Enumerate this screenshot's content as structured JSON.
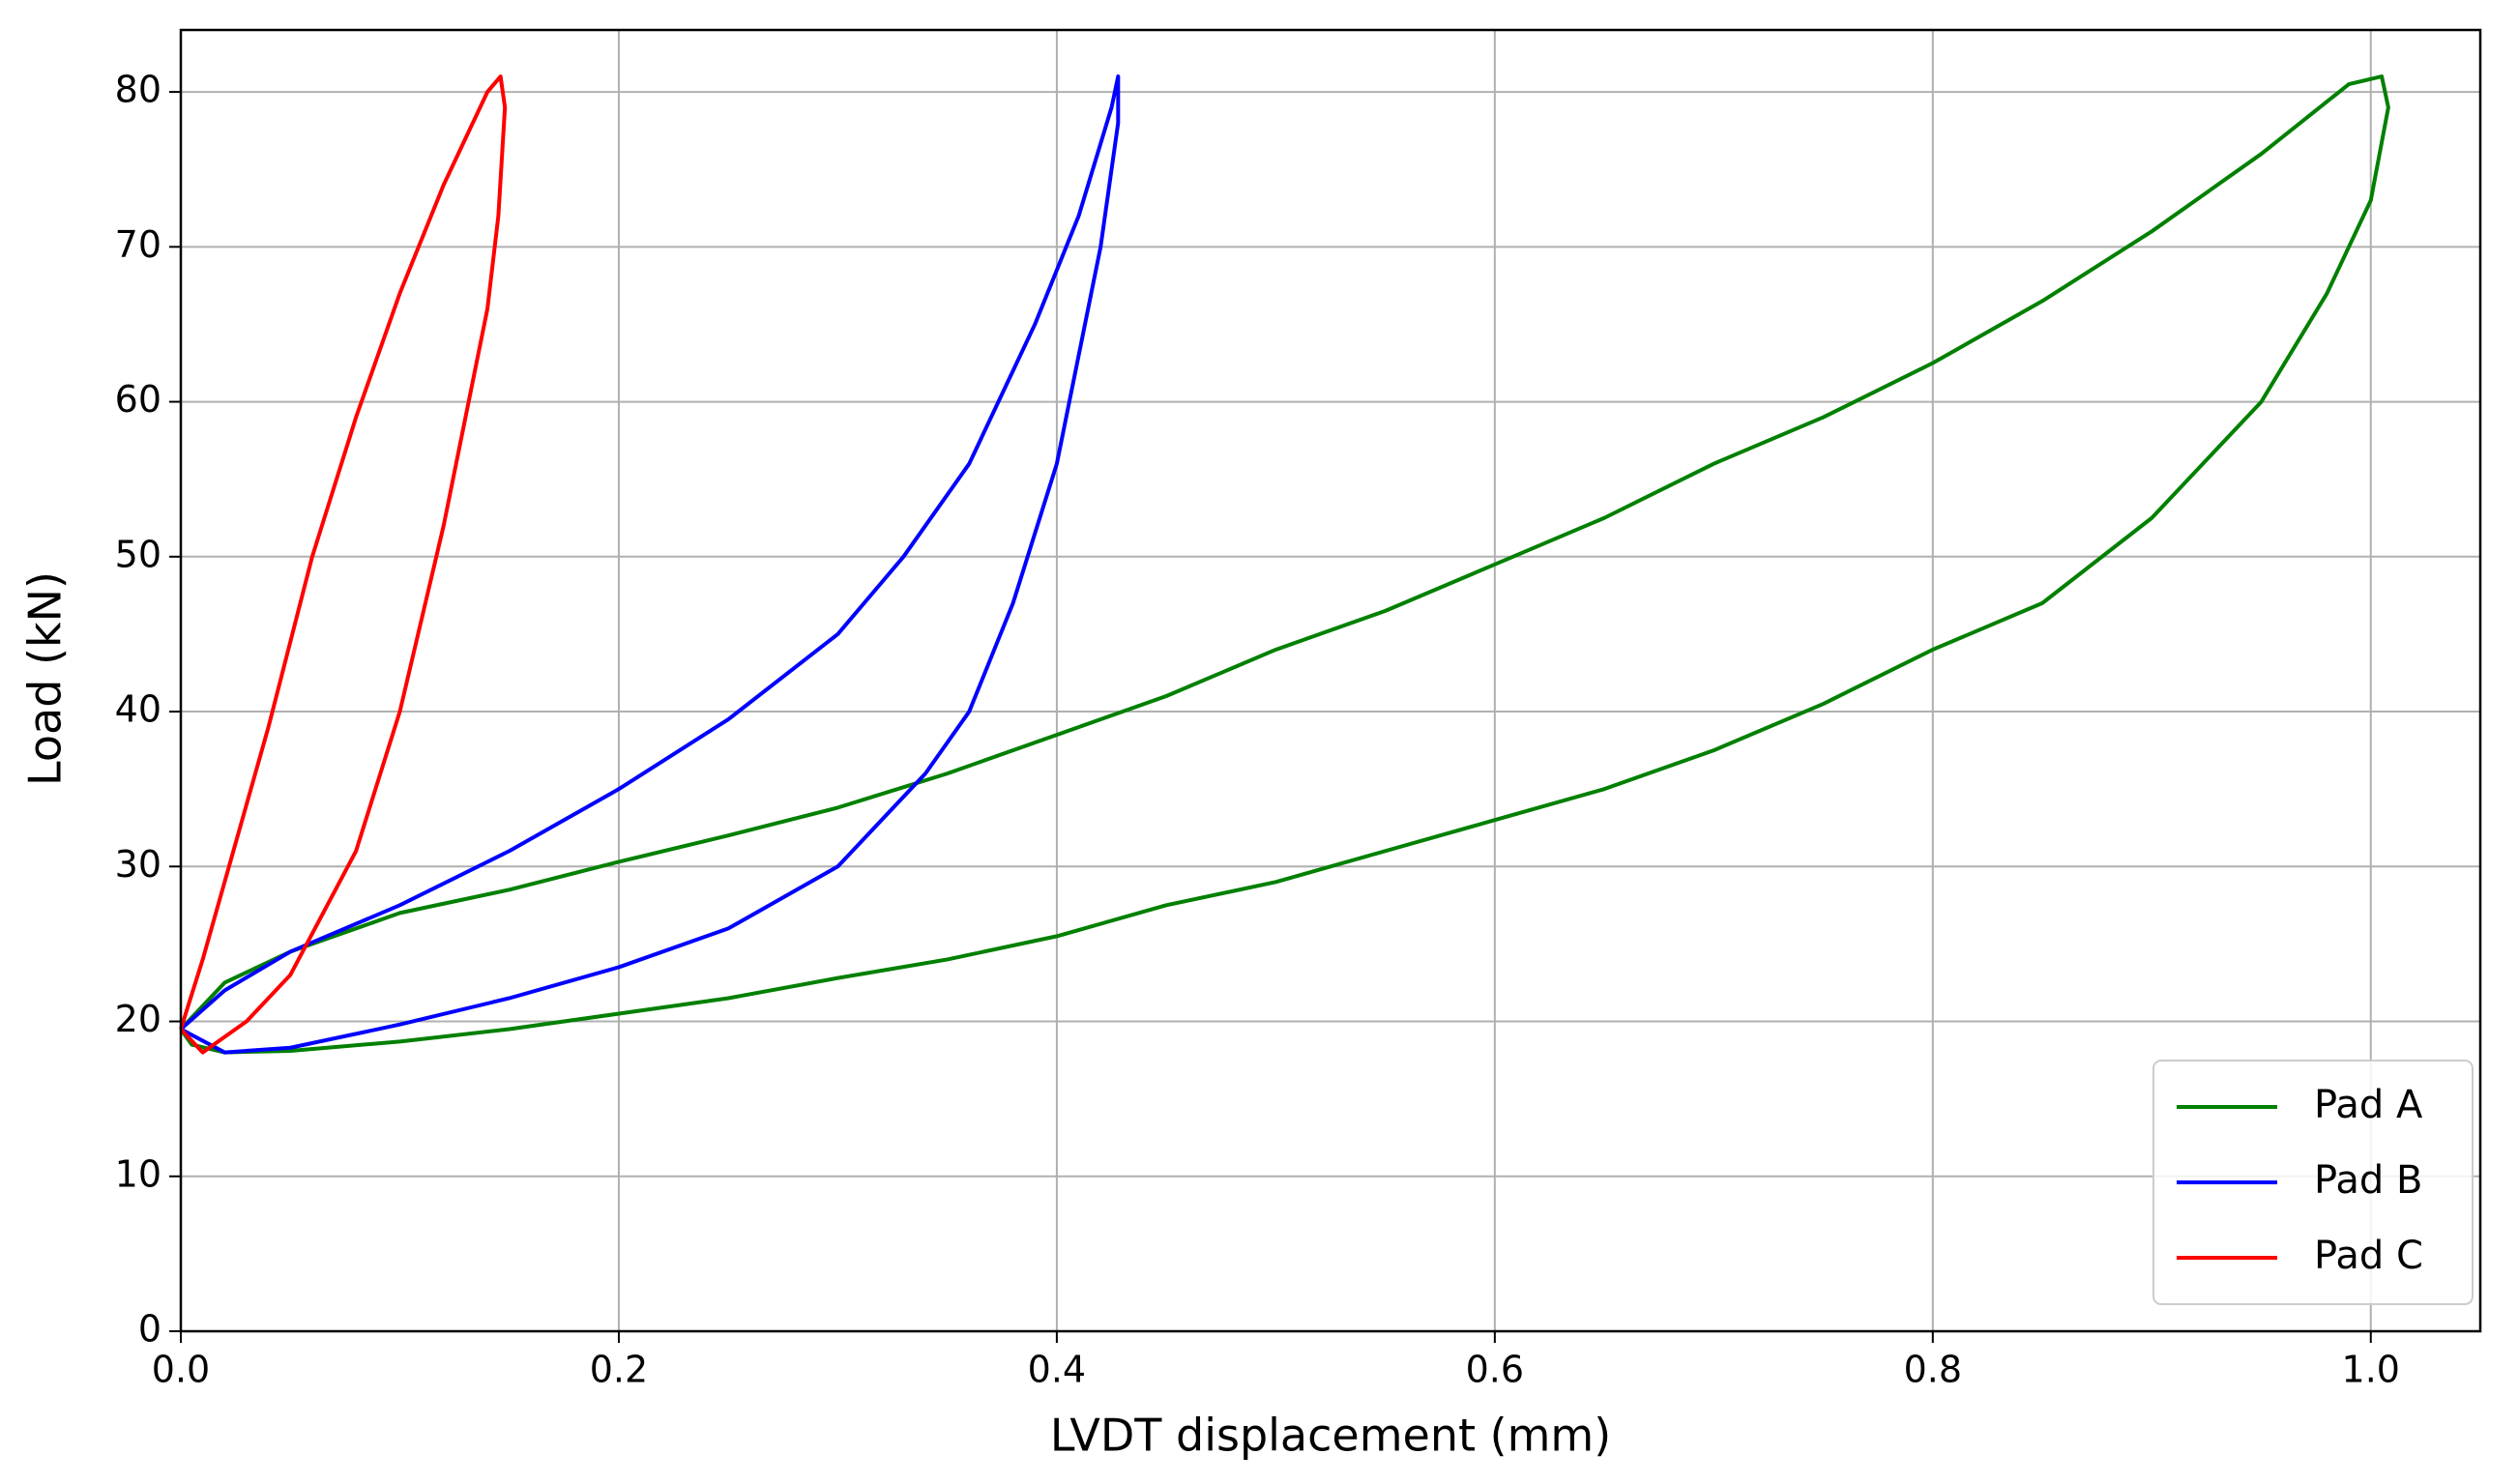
{
  "chart_data": {
    "type": "line",
    "xlabel": "LVDT displacement (mm)",
    "ylabel": "Load (kN)",
    "xlim": [
      0,
      1.05
    ],
    "ylim": [
      0,
      84
    ],
    "xticks": [
      {
        "value": 0,
        "label": "0.0"
      },
      0.2,
      0.4,
      0.6,
      0.8,
      {
        "value": 1,
        "label": "1.0"
      }
    ],
    "yticks": [
      0,
      10,
      20,
      30,
      40,
      50,
      60,
      70,
      80
    ],
    "grid": true,
    "legend": "lower right",
    "series": [
      {
        "name": "Pad A",
        "color": "#008000",
        "x": [
          0,
          0.02,
          0.05,
          0.1,
          0.15,
          0.2,
          0.25,
          0.3,
          0.35,
          0.4,
          0.45,
          0.5,
          0.55,
          0.6,
          0.65,
          0.7,
          0.75,
          0.8,
          0.85,
          0.9,
          0.95,
          0.99,
          1.005,
          1.008,
          1.0,
          0.98,
          0.95,
          0.9,
          0.85,
          0.8,
          0.75,
          0.7,
          0.65,
          0.6,
          0.55,
          0.5,
          0.45,
          0.4,
          0.35,
          0.3,
          0.25,
          0.2,
          0.15,
          0.1,
          0.05,
          0.02,
          0.005,
          0
        ],
        "values": [
          19.5,
          22.5,
          24.5,
          27,
          28.5,
          30.3,
          32,
          33.8,
          36,
          38.5,
          41,
          44,
          46.5,
          49.5,
          52.5,
          56,
          59,
          62.5,
          66.5,
          71,
          76,
          80.5,
          81,
          79,
          73,
          67,
          60,
          52.5,
          47,
          44,
          40.5,
          37.5,
          35,
          33,
          31,
          29,
          27.5,
          25.5,
          24,
          22.8,
          21.5,
          20.5,
          19.5,
          18.7,
          18.1,
          18,
          18.5,
          19.5
        ]
      },
      {
        "name": "Pad B",
        "color": "#0000ff",
        "x": [
          0,
          0.02,
          0.05,
          0.1,
          0.15,
          0.2,
          0.25,
          0.3,
          0.33,
          0.36,
          0.39,
          0.41,
          0.425,
          0.428,
          0.428,
          0.42,
          0.41,
          0.4,
          0.38,
          0.36,
          0.34,
          0.3,
          0.25,
          0.2,
          0.15,
          0.1,
          0.05,
          0.02,
          0
        ],
        "values": [
          19.5,
          22,
          24.5,
          27.5,
          31,
          35,
          39.5,
          45,
          50,
          56,
          65,
          72,
          79,
          81,
          78,
          70,
          63,
          56,
          47,
          40,
          36,
          30,
          26,
          23.5,
          21.5,
          19.8,
          18.3,
          18,
          19.5
        ]
      },
      {
        "name": "Pad C",
        "color": "#ff0000",
        "x": [
          0,
          0.01,
          0.02,
          0.04,
          0.06,
          0.08,
          0.1,
          0.12,
          0.14,
          0.146,
          0.148,
          0.145,
          0.14,
          0.12,
          0.1,
          0.08,
          0.05,
          0.03,
          0.01,
          0
        ],
        "values": [
          19.5,
          24,
          29,
          39,
          50,
          59,
          67,
          74,
          80,
          81,
          79,
          72,
          66,
          52,
          40,
          31,
          23,
          20,
          18,
          19.5
        ]
      }
    ]
  }
}
